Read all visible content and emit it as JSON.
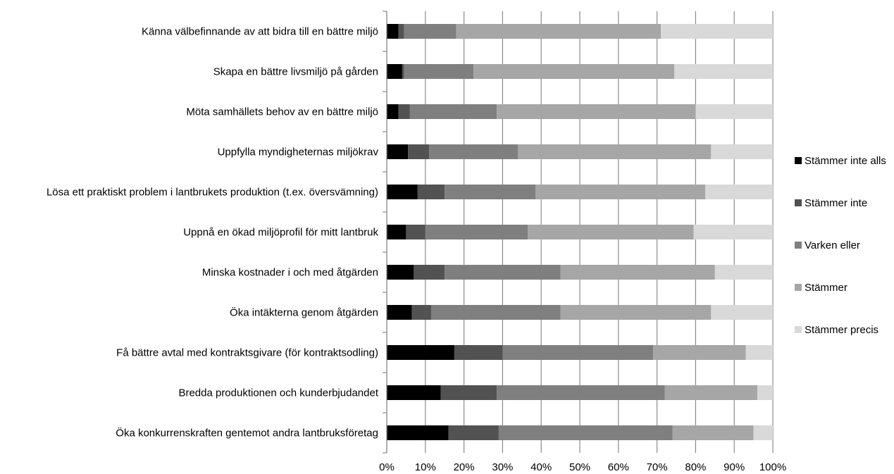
{
  "chart_data": {
    "type": "bar",
    "orientation": "horizontal",
    "stacked": "percent",
    "title": "",
    "xlabel": "",
    "ylabel": "",
    "xlim": [
      0,
      100
    ],
    "x_ticks": [
      "0%",
      "10%",
      "20%",
      "30%",
      "40%",
      "50%",
      "60%",
      "70%",
      "80%",
      "90%",
      "100%"
    ],
    "grid": "vertical",
    "legend_position": "right",
    "categories": [
      "Känna välbefinnande av att bidra till en bättre miljö",
      "Skapa en bättre livsmiljö på gården",
      "Möta samhällets behov av en bättre miljö",
      "Uppfylla myndigheternas miljökrav",
      "Lösa ett praktiskt problem i lantbrukets produktion (t.ex. översvämning)",
      "Uppnå en ökad miljöprofil för mitt lantbruk",
      "Minska kostnader i och med åtgärden",
      "Öka intäkterna genom åtgärden",
      "Få bättre avtal med kontraktsgivare (för kontraktsodling)",
      "Bredda produktionen och kunderbjudandet",
      "Öka konkurrenskraften gentemot andra lantbruksföretag"
    ],
    "series": [
      {
        "name": "Stämmer inte alls",
        "color": "#000000",
        "values": [
          3,
          4,
          3,
          5.5,
          8,
          5,
          7,
          6.5,
          17.5,
          14,
          16
        ]
      },
      {
        "name": "Stämmer inte",
        "color": "#525252",
        "values": [
          1.5,
          0.5,
          3,
          5.5,
          7,
          5,
          8,
          5,
          12.5,
          14.5,
          13
        ]
      },
      {
        "name": "Varken eller",
        "color": "#7f7f7f",
        "values": [
          13.5,
          18,
          22.5,
          23,
          23.5,
          26.5,
          30,
          33.5,
          39,
          43.5,
          45
        ]
      },
      {
        "name": "Stämmer",
        "color": "#a6a6a6",
        "values": [
          53,
          52,
          51.5,
          50,
          44,
          43,
          40,
          39,
          24,
          24,
          21
        ]
      },
      {
        "name": "Stämmer precis",
        "color": "#d9d9d9",
        "values": [
          29,
          25.5,
          20,
          16,
          17.5,
          20.5,
          15,
          16,
          7,
          4,
          5
        ]
      }
    ]
  }
}
